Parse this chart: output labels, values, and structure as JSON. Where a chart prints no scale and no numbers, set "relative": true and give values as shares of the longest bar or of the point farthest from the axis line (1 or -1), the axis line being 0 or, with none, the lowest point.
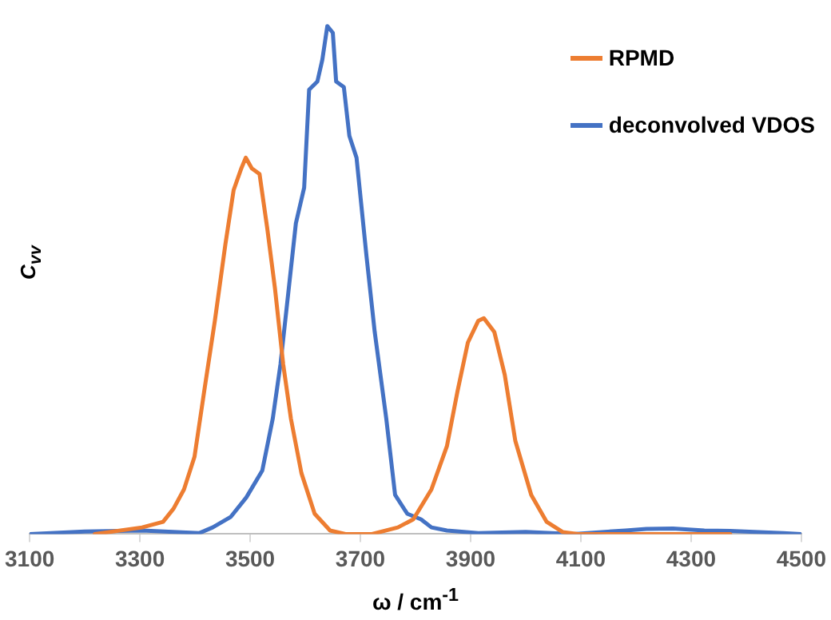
{
  "chart_data": {
    "type": "line",
    "xlabel": "ω / cm$^{-1}$",
    "ylabel": "C$_{vv}$",
    "relative": true,
    "legend": "top right",
    "grid": false,
    "marker": "none",
    "line_style": "solid",
    "xlim": [
      3100,
      4500
    ],
    "xticks": [
      3100,
      3300,
      3500,
      3700,
      3900,
      4100,
      4300,
      4500
    ],
    "series": [
      {
        "name": "RPMD",
        "color": "#ed7d31",
        "x": [
          3218,
          3304,
          3342,
          3361,
          3380,
          3399,
          3418,
          3436,
          3455,
          3470,
          3484,
          3492,
          3503,
          3517,
          3531,
          3545,
          3560,
          3574,
          3593,
          3617,
          3645,
          3673,
          3721,
          3768,
          3796,
          3829,
          3857,
          3876,
          3895,
          3914,
          3924,
          3943,
          3962,
          3981,
          4010,
          4038,
          4067,
          4095,
          4371
        ],
        "values": [
          0,
          0.013,
          0.024,
          0.05,
          0.088,
          0.152,
          0.291,
          0.42,
          0.57,
          0.677,
          0.72,
          0.741,
          0.72,
          0.709,
          0.602,
          0.484,
          0.334,
          0.227,
          0.12,
          0.04,
          0.007,
          0,
          0,
          0.013,
          0.029,
          0.088,
          0.173,
          0.28,
          0.377,
          0.42,
          0.425,
          0.398,
          0.313,
          0.184,
          0.077,
          0.024,
          0.004,
          0,
          0
        ]
      },
      {
        "name": "deconvolved VDOS",
        "color": "#4472c4",
        "x": [
          3100,
          3200,
          3304,
          3408,
          3432,
          3465,
          3493,
          3522,
          3541,
          3555,
          3569,
          3583,
          3598,
          3607,
          3622,
          3631,
          3640,
          3650,
          3656,
          3670,
          3680,
          3693,
          3711,
          3726,
          3747,
          3763,
          3785,
          3810,
          3829,
          3857,
          3914,
          4000,
          4086,
          4181,
          4219,
          4267,
          4324,
          4371,
          4467,
          4500
        ],
        "values": [
          0,
          0.005,
          0.007,
          0.002,
          0.013,
          0.034,
          0.072,
          0.125,
          0.227,
          0.334,
          0.473,
          0.612,
          0.682,
          0.875,
          0.891,
          0.934,
          1,
          0.987,
          0.891,
          0.88,
          0.784,
          0.741,
          0.548,
          0.398,
          0.227,
          0.077,
          0.04,
          0.029,
          0.013,
          0.007,
          0.002,
          0.004,
          0,
          0.007,
          0.01,
          0.011,
          0.007,
          0.006,
          0.002,
          0
        ]
      }
    ]
  }
}
